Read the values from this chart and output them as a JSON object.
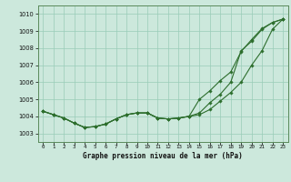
{
  "title": "Graphe pression niveau de la mer (hPa)",
  "x_labels": [
    "0",
    "1",
    "2",
    "3",
    "4",
    "5",
    "6",
    "7",
    "8",
    "9",
    "10",
    "11",
    "12",
    "13",
    "14",
    "15",
    "16",
    "17",
    "18",
    "19",
    "20",
    "21",
    "22",
    "23"
  ],
  "ylim": [
    1002.5,
    1010.5
  ],
  "yticks": [
    1003,
    1004,
    1005,
    1006,
    1007,
    1008,
    1009,
    1010
  ],
  "background_color": "#cce8dc",
  "grid_color": "#99ccb8",
  "line_color": "#2d6e2d",
  "line1": [
    1004.3,
    1004.1,
    1003.9,
    1003.6,
    1003.35,
    1003.4,
    1003.55,
    1003.85,
    1004.1,
    1004.2,
    1004.2,
    1003.9,
    1003.85,
    1003.9,
    1004.0,
    1004.1,
    1004.4,
    1004.9,
    1005.4,
    1006.0,
    1007.0,
    1007.85,
    1009.1,
    1009.7
  ],
  "line2": [
    1004.3,
    1004.1,
    1003.9,
    1003.6,
    1003.35,
    1003.4,
    1003.55,
    1003.85,
    1004.1,
    1004.2,
    1004.2,
    1003.9,
    1003.85,
    1003.9,
    1004.0,
    1004.2,
    1004.8,
    1005.3,
    1006.0,
    1007.85,
    1008.4,
    1009.1,
    1009.5,
    1009.7
  ],
  "line3": [
    1004.3,
    1004.1,
    1003.9,
    1003.6,
    1003.35,
    1003.4,
    1003.55,
    1003.85,
    1004.1,
    1004.2,
    1004.2,
    1003.9,
    1003.85,
    1003.9,
    1004.0,
    1005.0,
    1005.5,
    1006.1,
    1006.6,
    1007.8,
    1008.5,
    1009.15,
    1009.5,
    1009.7
  ]
}
